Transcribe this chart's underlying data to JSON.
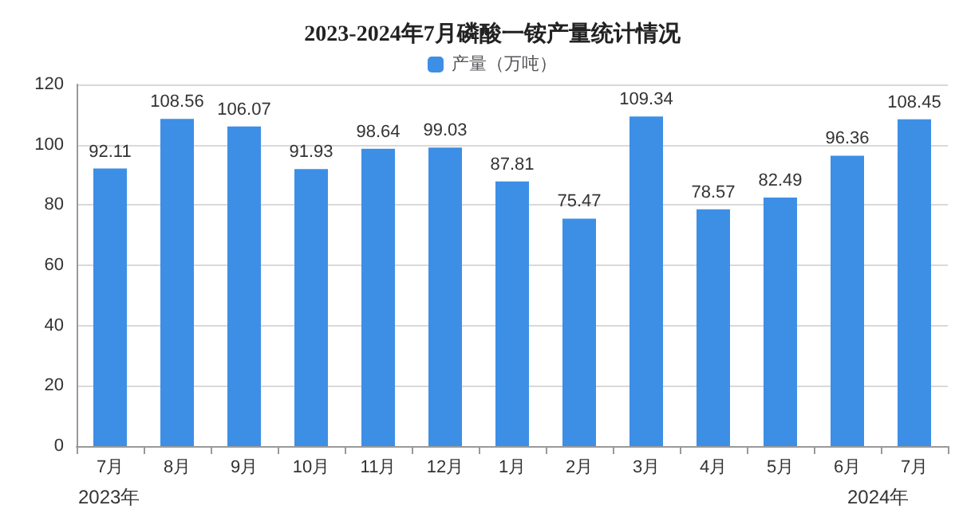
{
  "chart_data": {
    "type": "bar",
    "title": "2023-2024年7月磷酸一铵产量统计情况",
    "categories": [
      "7月",
      "8月",
      "9月",
      "10月",
      "11月",
      "12月",
      "1月",
      "2月",
      "3月",
      "4月",
      "5月",
      "6月",
      "7月"
    ],
    "series": [
      {
        "name": "产量（万吨）",
        "color": "#3d8fe6",
        "values": [
          92.11,
          108.56,
          106.07,
          91.93,
          98.64,
          99.03,
          87.81,
          75.47,
          109.34,
          78.57,
          82.49,
          96.36,
          108.45
        ]
      }
    ],
    "ylim": [
      0,
      120
    ],
    "yticks": [
      0,
      20,
      40,
      60,
      80,
      100,
      120
    ],
    "grid": "y",
    "legend": "top",
    "data_labels": true,
    "annotations": [
      "2023年",
      "2024年"
    ]
  }
}
